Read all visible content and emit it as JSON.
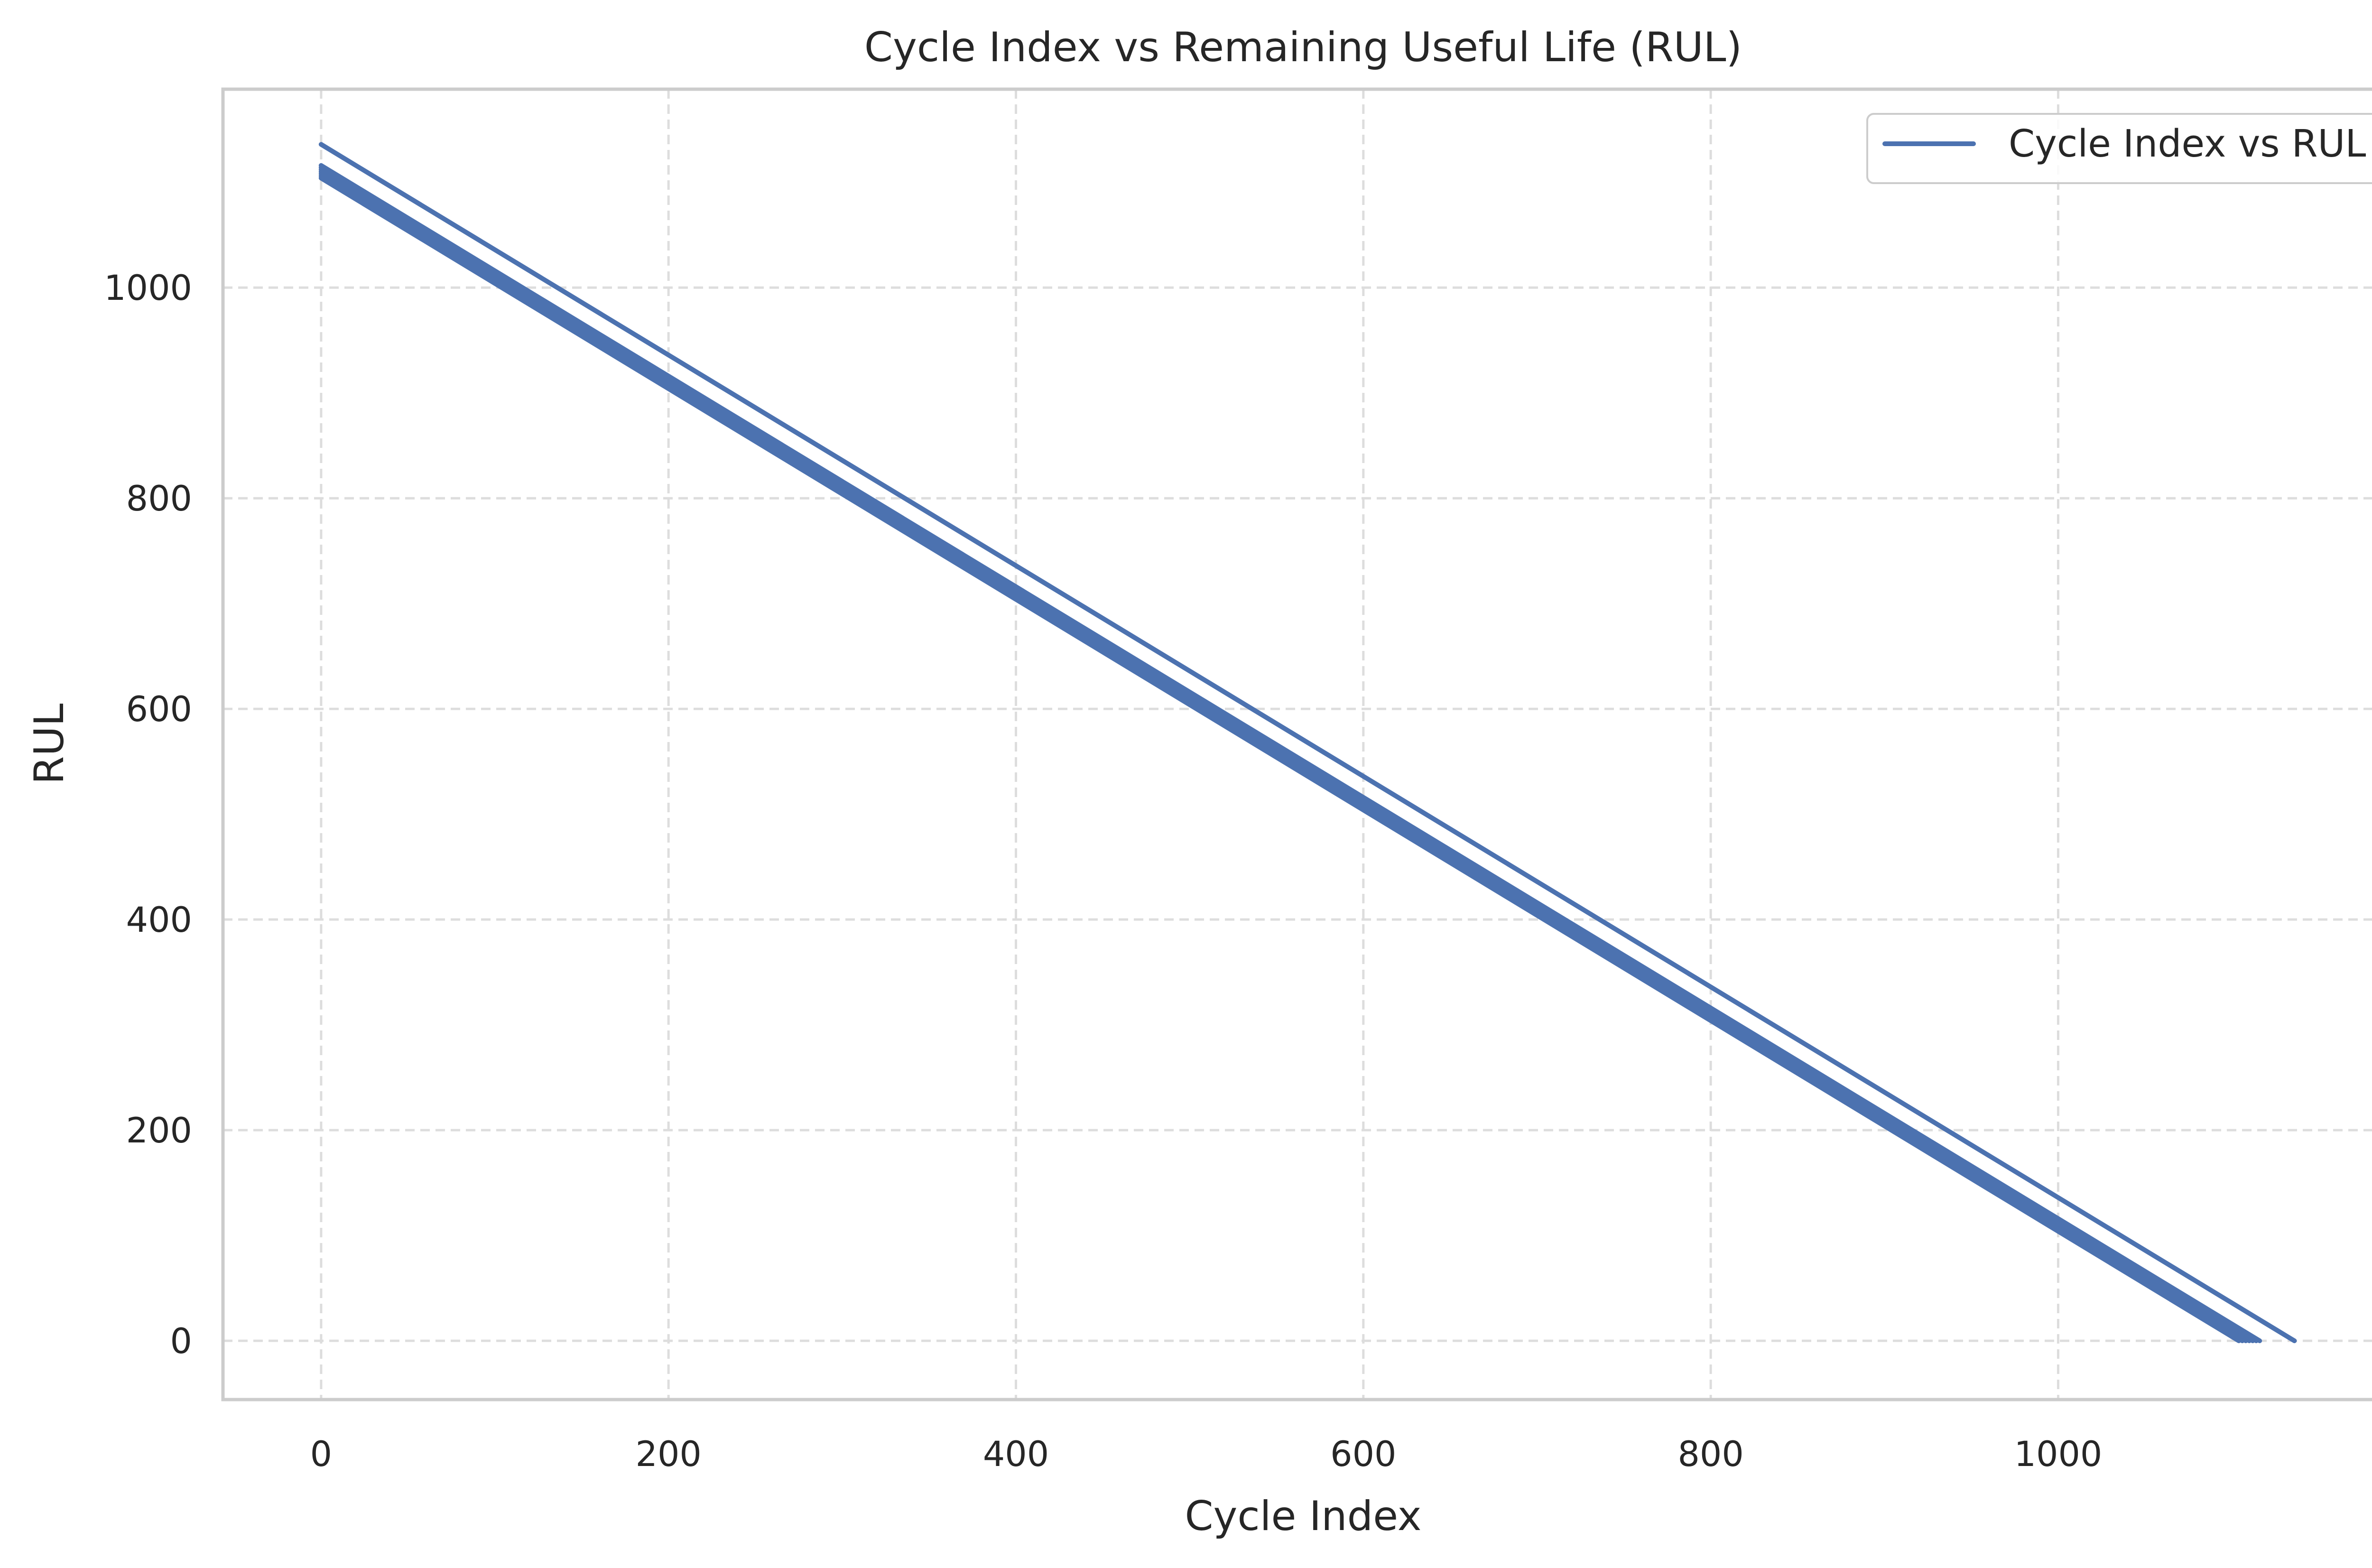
{
  "chart_data": {
    "type": "line",
    "title": "Cycle Index vs Remaining Useful Life (RUL)",
    "xlabel": "Cycle Index",
    "ylabel": "RUL",
    "xlim": [
      -56.5,
      1187.5
    ],
    "ylim": [
      -55.8,
      1188.4
    ],
    "xticks": [
      0,
      200,
      400,
      600,
      800,
      1000
    ],
    "yticks": [
      0,
      200,
      400,
      600,
      800,
      1000
    ],
    "grid": true,
    "grid_style": "dashed",
    "legend_position": "top-right",
    "series": [
      {
        "name": "Cycle Index vs RUL",
        "color": "#4c72b0",
        "description_runs": "Multiple overlapping run-to-failure runs; each run decreases linearly from max RUL at cycle 0 to RUL 0 at final cycle",
        "runs": [
          {
            "x": [
              0,
              1104
            ],
            "y": [
              1104,
              0
            ]
          },
          {
            "x": [
              0,
              1106
            ],
            "y": [
              1106,
              0
            ]
          },
          {
            "x": [
              0,
              1108
            ],
            "y": [
              1108,
              0
            ]
          },
          {
            "x": [
              0,
              1110
            ],
            "y": [
              1110,
              0
            ]
          },
          {
            "x": [
              0,
              1112
            ],
            "y": [
              1112,
              0
            ]
          },
          {
            "x": [
              0,
              1114
            ],
            "y": [
              1114,
              0
            ]
          },
          {
            "x": [
              0,
              1116
            ],
            "y": [
              1116,
              0
            ]
          },
          {
            "x": [
              0,
              1136
            ],
            "y": [
              1136,
              0
            ]
          }
        ]
      }
    ]
  },
  "colors": {
    "line": "#4c72b0",
    "grid": "#dddddd",
    "frame": "#cccccc",
    "text": "#262626",
    "background": "#ffffff"
  }
}
